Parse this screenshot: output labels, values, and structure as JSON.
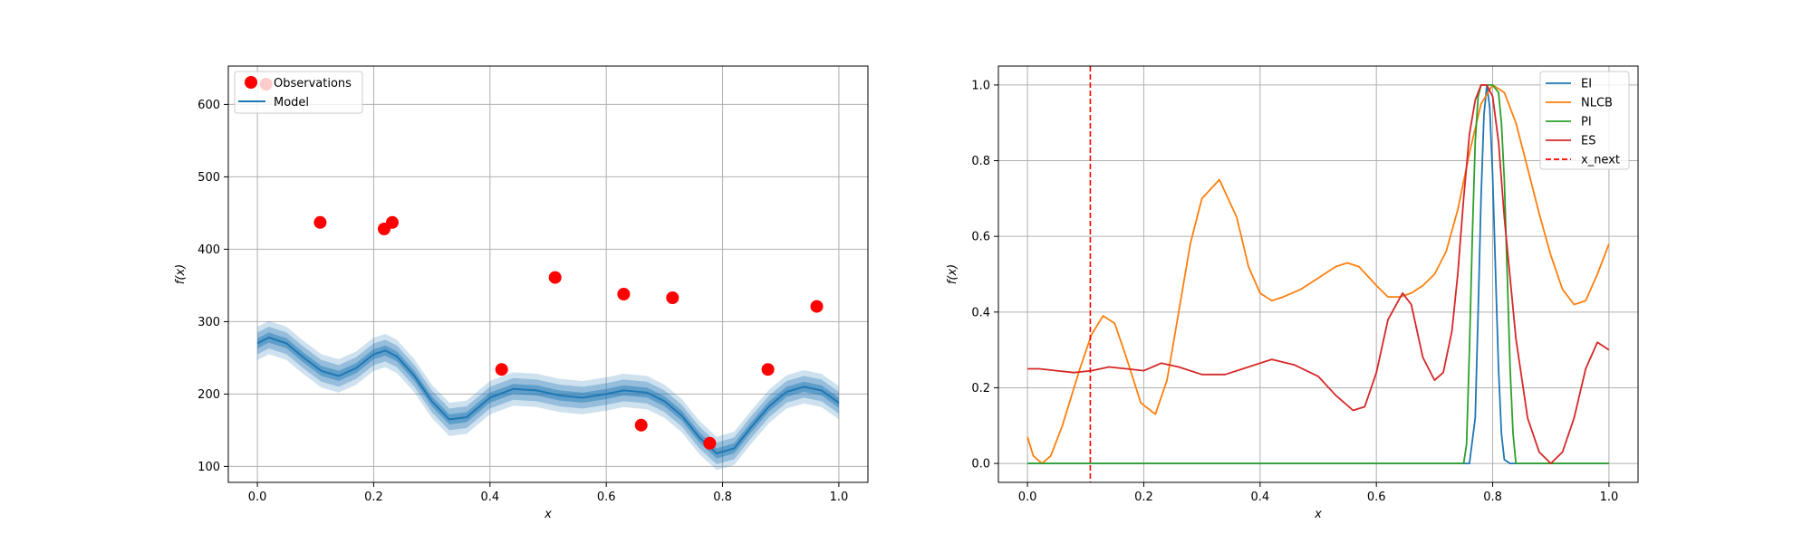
{
  "chart_data": [
    {
      "type": "line",
      "xlabel": "x",
      "ylabel": "f(x)",
      "xlim": [
        -0.05,
        1.05
      ],
      "ylim": [
        78,
        653
      ],
      "xticks": [
        0.0,
        0.2,
        0.4,
        0.6,
        0.8,
        1.0
      ],
      "xtick_labels": [
        "0.0",
        "0.2",
        "0.4",
        "0.6",
        "0.8",
        "1.0"
      ],
      "yticks": [
        100,
        200,
        300,
        400,
        500,
        600
      ],
      "ytick_labels": [
        "100",
        "200",
        "300",
        "400",
        "500",
        "600"
      ],
      "grid": true,
      "legend_position": "upper-left",
      "colors": {
        "observations": "#ff0000",
        "model": "#1f77b4"
      },
      "observations": {
        "name": "Observations",
        "x": [
          0.015,
          0.108,
          0.218,
          0.232,
          0.42,
          0.512,
          0.63,
          0.66,
          0.714,
          0.778,
          0.878,
          0.962
        ],
        "y": [
          628,
          437,
          428,
          437,
          234,
          361,
          338,
          157,
          333,
          132,
          234,
          321
        ]
      },
      "model": {
        "name": "Model",
        "x": [
          0.0,
          0.02,
          0.05,
          0.08,
          0.11,
          0.14,
          0.17,
          0.2,
          0.22,
          0.24,
          0.27,
          0.3,
          0.33,
          0.36,
          0.4,
          0.44,
          0.48,
          0.52,
          0.56,
          0.6,
          0.63,
          0.67,
          0.7,
          0.73,
          0.76,
          0.79,
          0.82,
          0.85,
          0.88,
          0.91,
          0.94,
          0.97,
          1.0
        ],
        "y": [
          270,
          278,
          270,
          250,
          232,
          225,
          236,
          255,
          260,
          252,
          225,
          190,
          165,
          168,
          195,
          207,
          205,
          198,
          195,
          200,
          205,
          202,
          190,
          170,
          140,
          118,
          125,
          155,
          183,
          203,
          210,
          205,
          188
        ]
      },
      "band_sigma": [
        7,
        15,
        23
      ]
    },
    {
      "type": "line",
      "xlabel": "x",
      "ylabel": "f(x)",
      "xlim": [
        -0.05,
        1.05
      ],
      "ylim": [
        -0.05,
        1.05
      ],
      "xticks": [
        0.0,
        0.2,
        0.4,
        0.6,
        0.8,
        1.0
      ],
      "xtick_labels": [
        "0.0",
        "0.2",
        "0.4",
        "0.6",
        "0.8",
        "1.0"
      ],
      "yticks": [
        0.0,
        0.2,
        0.4,
        0.6,
        0.8,
        1.0
      ],
      "ytick_labels": [
        "0.0",
        "0.2",
        "0.4",
        "0.6",
        "0.8",
        "1.0"
      ],
      "grid": true,
      "legend_position": "upper-right",
      "series": [
        {
          "name": "EI",
          "color": "#1f77b4",
          "x": [
            0.0,
            0.76,
            0.77,
            0.775,
            0.78,
            0.785,
            0.79,
            0.795,
            0.8,
            0.805,
            0.81,
            0.815,
            0.82,
            0.83,
            1.0
          ],
          "y": [
            0.0,
            0.0,
            0.12,
            0.4,
            0.7,
            0.92,
            1.0,
            0.94,
            0.76,
            0.5,
            0.25,
            0.08,
            0.01,
            0.0,
            0.0
          ]
        },
        {
          "name": "NLCB",
          "color": "#ff7f0e",
          "x": [
            0.0,
            0.01,
            0.025,
            0.04,
            0.06,
            0.09,
            0.11,
            0.13,
            0.15,
            0.17,
            0.195,
            0.22,
            0.24,
            0.26,
            0.28,
            0.3,
            0.33,
            0.36,
            0.38,
            0.4,
            0.42,
            0.44,
            0.47,
            0.5,
            0.53,
            0.55,
            0.57,
            0.6,
            0.62,
            0.64,
            0.66,
            0.68,
            0.7,
            0.72,
            0.74,
            0.76,
            0.78,
            0.8,
            0.82,
            0.84,
            0.86,
            0.88,
            0.9,
            0.92,
            0.94,
            0.96,
            0.98,
            1.0
          ],
          "y": [
            0.07,
            0.02,
            0.0,
            0.02,
            0.1,
            0.25,
            0.34,
            0.39,
            0.37,
            0.28,
            0.16,
            0.13,
            0.22,
            0.4,
            0.58,
            0.7,
            0.75,
            0.65,
            0.52,
            0.45,
            0.43,
            0.44,
            0.46,
            0.49,
            0.52,
            0.53,
            0.52,
            0.47,
            0.44,
            0.44,
            0.45,
            0.47,
            0.5,
            0.56,
            0.67,
            0.82,
            0.95,
            1.0,
            0.98,
            0.9,
            0.78,
            0.66,
            0.55,
            0.46,
            0.42,
            0.43,
            0.5,
            0.58
          ]
        },
        {
          "name": "PI",
          "color": "#2ca02c",
          "x": [
            0.0,
            0.75,
            0.755,
            0.76,
            0.765,
            0.77,
            0.775,
            0.78,
            0.8,
            0.81,
            0.815,
            0.82,
            0.825,
            0.83,
            0.835,
            0.84,
            1.0
          ],
          "y": [
            0.0,
            0.0,
            0.05,
            0.3,
            0.6,
            0.85,
            0.97,
            1.0,
            1.0,
            0.98,
            0.9,
            0.75,
            0.5,
            0.25,
            0.08,
            0.0,
            0.0
          ]
        },
        {
          "name": "ES",
          "color": "#d62728",
          "x": [
            0.0,
            0.02,
            0.05,
            0.08,
            0.11,
            0.14,
            0.17,
            0.2,
            0.23,
            0.26,
            0.3,
            0.34,
            0.38,
            0.42,
            0.46,
            0.5,
            0.53,
            0.56,
            0.58,
            0.6,
            0.62,
            0.645,
            0.66,
            0.68,
            0.7,
            0.715,
            0.73,
            0.74,
            0.75,
            0.76,
            0.77,
            0.78,
            0.79,
            0.8,
            0.81,
            0.82,
            0.84,
            0.86,
            0.88,
            0.9,
            0.92,
            0.94,
            0.96,
            0.98,
            1.0
          ],
          "y": [
            0.25,
            0.25,
            0.245,
            0.24,
            0.245,
            0.255,
            0.25,
            0.245,
            0.265,
            0.255,
            0.235,
            0.235,
            0.255,
            0.275,
            0.26,
            0.23,
            0.18,
            0.14,
            0.15,
            0.24,
            0.38,
            0.45,
            0.42,
            0.28,
            0.22,
            0.24,
            0.35,
            0.5,
            0.7,
            0.87,
            0.96,
            1.0,
            1.0,
            0.97,
            0.85,
            0.65,
            0.33,
            0.12,
            0.03,
            0.0,
            0.03,
            0.12,
            0.25,
            0.32,
            0.3
          ]
        },
        {
          "name": "x_next",
          "color": "#ff0000",
          "dashed": true,
          "vertical_x": 0.108
        }
      ]
    }
  ]
}
